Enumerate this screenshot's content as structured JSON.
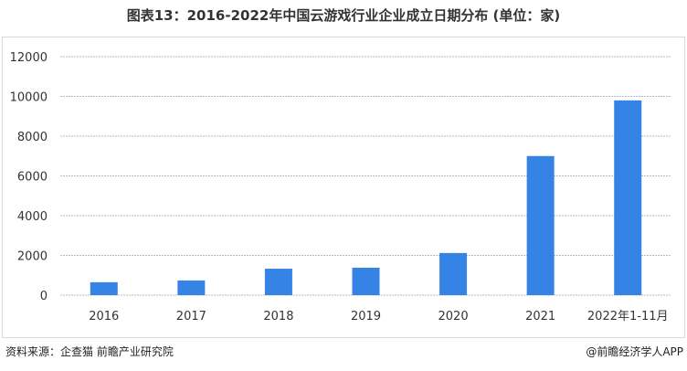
{
  "title": "图表13：2016-2022年中国云游戏行业企业成立日期分布 (单位：家)",
  "source": "资料来源：企查猫 前瞻产业研究院",
  "credit": "@前瞻经济学人APP",
  "watermark": "前瞻产业研究院",
  "chart_data": {
    "type": "bar",
    "title": "图表13：2016-2022年中国云游戏行业企业成立日期分布 (单位：家)",
    "categories": [
      "2016",
      "2017",
      "2018",
      "2019",
      "2020",
      "2021",
      "2022年1-11月"
    ],
    "values": [
      650,
      740,
      1330,
      1380,
      2120,
      7000,
      9800
    ],
    "ylim": [
      0,
      12000
    ],
    "yticks": [
      0,
      2000,
      4000,
      6000,
      8000,
      10000,
      12000
    ],
    "grid": true,
    "legend": "none",
    "bar_color": "#3683e6"
  }
}
